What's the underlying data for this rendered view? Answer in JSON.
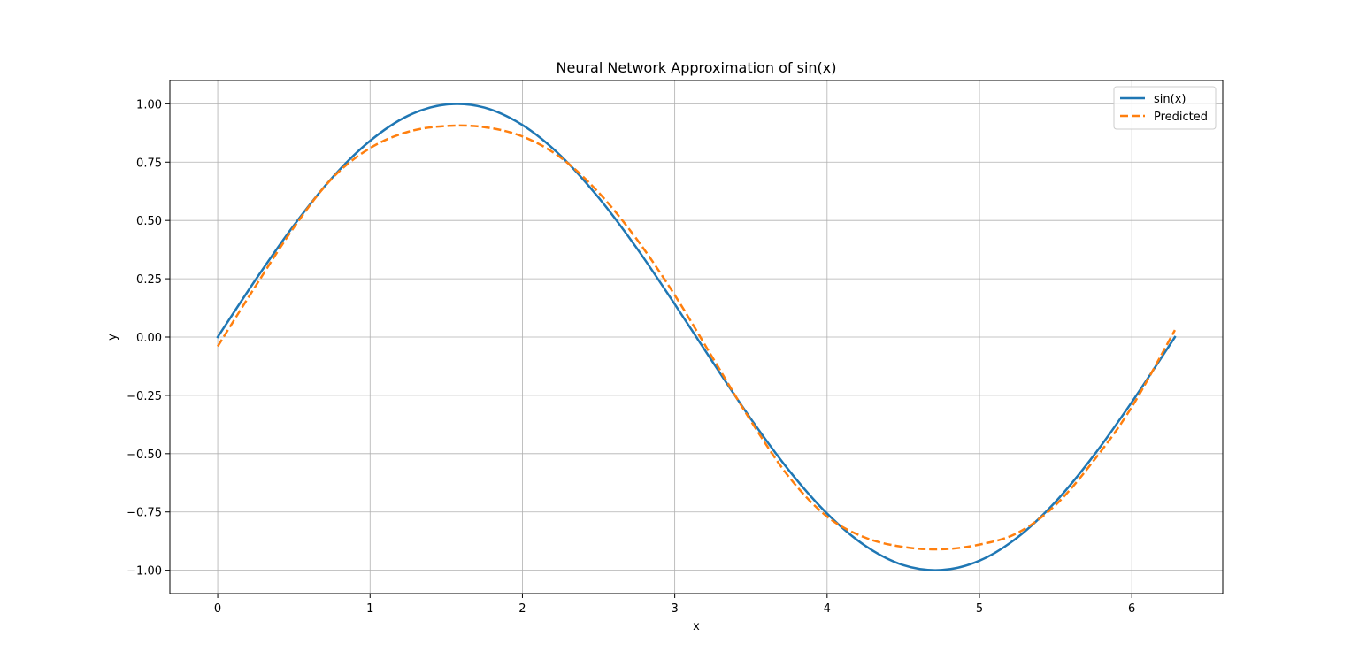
{
  "chart_data": {
    "type": "line",
    "title": "Neural Network Approximation of sin(x)",
    "xlabel": "x",
    "ylabel": "y",
    "xlim": [
      -0.314,
      6.597
    ],
    "ylim": [
      -1.1,
      1.1
    ],
    "xticks": [
      0,
      1,
      2,
      3,
      4,
      5,
      6
    ],
    "xtick_labels": [
      "0",
      "1",
      "2",
      "3",
      "4",
      "5",
      "6"
    ],
    "yticks": [
      -1.0,
      -0.75,
      -0.5,
      -0.25,
      0.0,
      0.25,
      0.5,
      0.75,
      1.0
    ],
    "ytick_labels": [
      "−1.00",
      "−0.75",
      "−0.50",
      "−0.25",
      "0.00",
      "0.25",
      "0.50",
      "0.75",
      "1.00"
    ],
    "grid": true,
    "legend_position": "top-right",
    "x": [
      0.0,
      0.25,
      0.5,
      0.75,
      1.0,
      1.25,
      1.5,
      1.75,
      2.0,
      2.25,
      2.5,
      2.75,
      3.0,
      3.25,
      3.5,
      3.75,
      4.0,
      4.25,
      4.5,
      4.75,
      5.0,
      5.25,
      5.5,
      5.75,
      6.0,
      6.283
    ],
    "series": [
      {
        "name": "sin(x)",
        "color": "#1f77b4",
        "style": "solid",
        "values": [
          0.0,
          0.247,
          0.479,
          0.682,
          0.841,
          0.949,
          0.997,
          0.984,
          0.909,
          0.778,
          0.598,
          0.382,
          0.141,
          -0.108,
          -0.351,
          -0.572,
          -0.757,
          -0.895,
          -0.978,
          -0.999,
          -0.959,
          -0.859,
          -0.706,
          -0.508,
          -0.279,
          0.0
        ]
      },
      {
        "name": "Predicted",
        "color": "#ff7f0e",
        "style": "dashed",
        "values": [
          -0.04,
          0.22,
          0.47,
          0.68,
          0.81,
          0.88,
          0.905,
          0.9,
          0.86,
          0.77,
          0.62,
          0.42,
          0.18,
          -0.09,
          -0.36,
          -0.6,
          -0.77,
          -0.86,
          -0.9,
          -0.91,
          -0.89,
          -0.84,
          -0.72,
          -0.53,
          -0.3,
          0.03
        ]
      }
    ]
  }
}
